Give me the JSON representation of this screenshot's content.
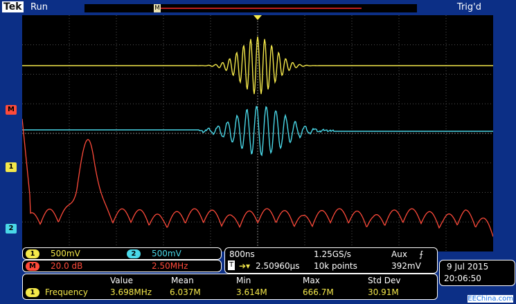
{
  "header": {
    "brand": "Tek",
    "run_state": "Run",
    "trigger_status": "Trig'd",
    "record_marker": "M"
  },
  "markers": {
    "math": "M",
    "ch1": "1",
    "ch2": "2"
  },
  "channels": {
    "ch1": {
      "badge": "1",
      "scale": "500mV",
      "color": "#f4e84a"
    },
    "ch2": {
      "badge": "2",
      "scale": "500mV",
      "color": "#4ad8e8"
    },
    "math": {
      "badge": "M",
      "scale": "20.0 dB",
      "freq": "2.50MHz",
      "color": "#ff4a3a"
    }
  },
  "timebase": {
    "horizontal": "800ns",
    "sample_rate": "1.25GS/s",
    "trigger_source": "Aux",
    "trigger_slope_icon": "rising-edge-icon",
    "trigger_position": "2.50960µs",
    "record_length": "10k points",
    "trigger_level": "392mV",
    "trigger_icon": "T"
  },
  "measurement": {
    "headers": [
      "Value",
      "Mean",
      "Min",
      "Max",
      "Std Dev"
    ],
    "badge": "1",
    "name": "Frequency",
    "values": [
      "3.698MHz",
      "6.037M",
      "3.614M",
      "666.7M",
      "30.91M"
    ]
  },
  "datetime": {
    "date": "9 Jul  2015",
    "time": "20:06:50"
  },
  "credit": "EEChina.com"
}
